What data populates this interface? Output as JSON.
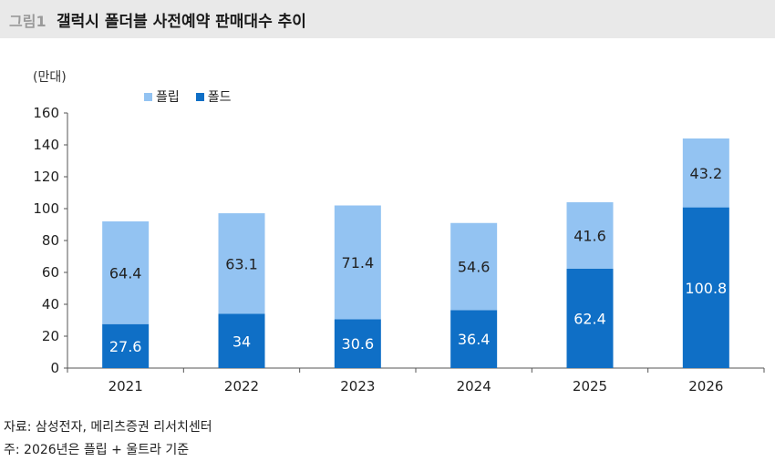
{
  "header": {
    "label": "그림1",
    "title": "갤럭시 폴더블 사전예약 판매대수 추이"
  },
  "colors": {
    "flip": "#93c3f2",
    "fold": "#0f6fc6",
    "header_bg": "#e9e9e9"
  },
  "chart_data": {
    "type": "bar",
    "stacked": true,
    "unit_label": "(만대)",
    "categories": [
      "2021",
      "2022",
      "2023",
      "2024",
      "2025",
      "2026"
    ],
    "series": [
      {
        "name": "폴드",
        "values": [
          27.6,
          34,
          30.6,
          36.4,
          62.4,
          100.8
        ]
      },
      {
        "name": "플립",
        "values": [
          64.4,
          63.1,
          71.4,
          54.6,
          41.6,
          43.2
        ]
      }
    ],
    "ylim": [
      0,
      160
    ],
    "yticks": [
      "0",
      "20",
      "40",
      "60",
      "80",
      "100",
      "120",
      "140",
      "160"
    ],
    "legend_position": "top-left",
    "grid": false
  },
  "footnotes": {
    "source": "자료: 삼성전자, 메리츠증권 리서치센터",
    "note": "주: 2026년은 플립 + 울트라 기준"
  }
}
